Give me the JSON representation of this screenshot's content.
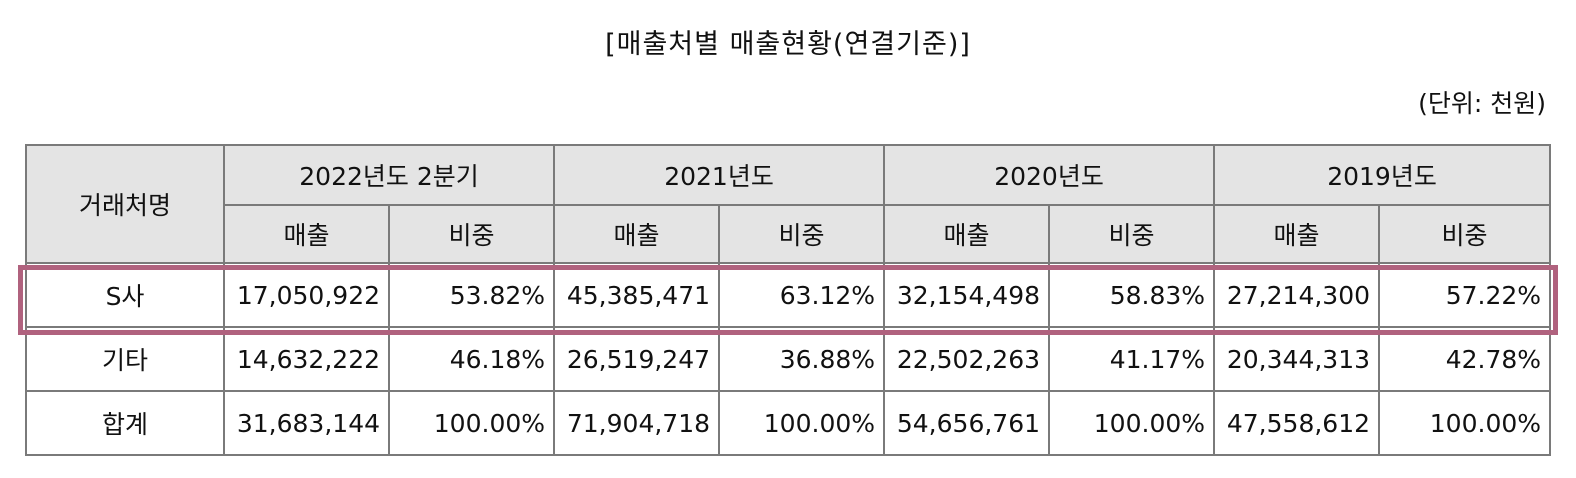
{
  "title": "[매출처별 매출현황(연결기준)]",
  "unit": "(단위: 천원)",
  "table": {
    "corner_header": "거래처명",
    "years": [
      "2022년도 2분기",
      "2021년도",
      "2020년도",
      "2019년도"
    ],
    "sub_headers": {
      "sales": "매출",
      "share": "비중"
    },
    "rows": [
      {
        "name": "S사",
        "cells": [
          "17,050,922",
          "53.82%",
          "45,385,471",
          "63.12%",
          "32,154,498",
          "58.83%",
          "27,214,300",
          "57.22%"
        ]
      },
      {
        "name": "기타",
        "cells": [
          "14,632,222",
          "46.18%",
          "26,519,247",
          "36.88%",
          "22,502,263",
          "41.17%",
          "20,344,313",
          "42.78%"
        ]
      },
      {
        "name": "합계",
        "cells": [
          "31,683,144",
          "100.00%",
          "71,904,718",
          "100.00%",
          "54,656,761",
          "100.00%",
          "47,558,612",
          "100.00%"
        ]
      }
    ],
    "highlight_color": "#b0627e"
  }
}
